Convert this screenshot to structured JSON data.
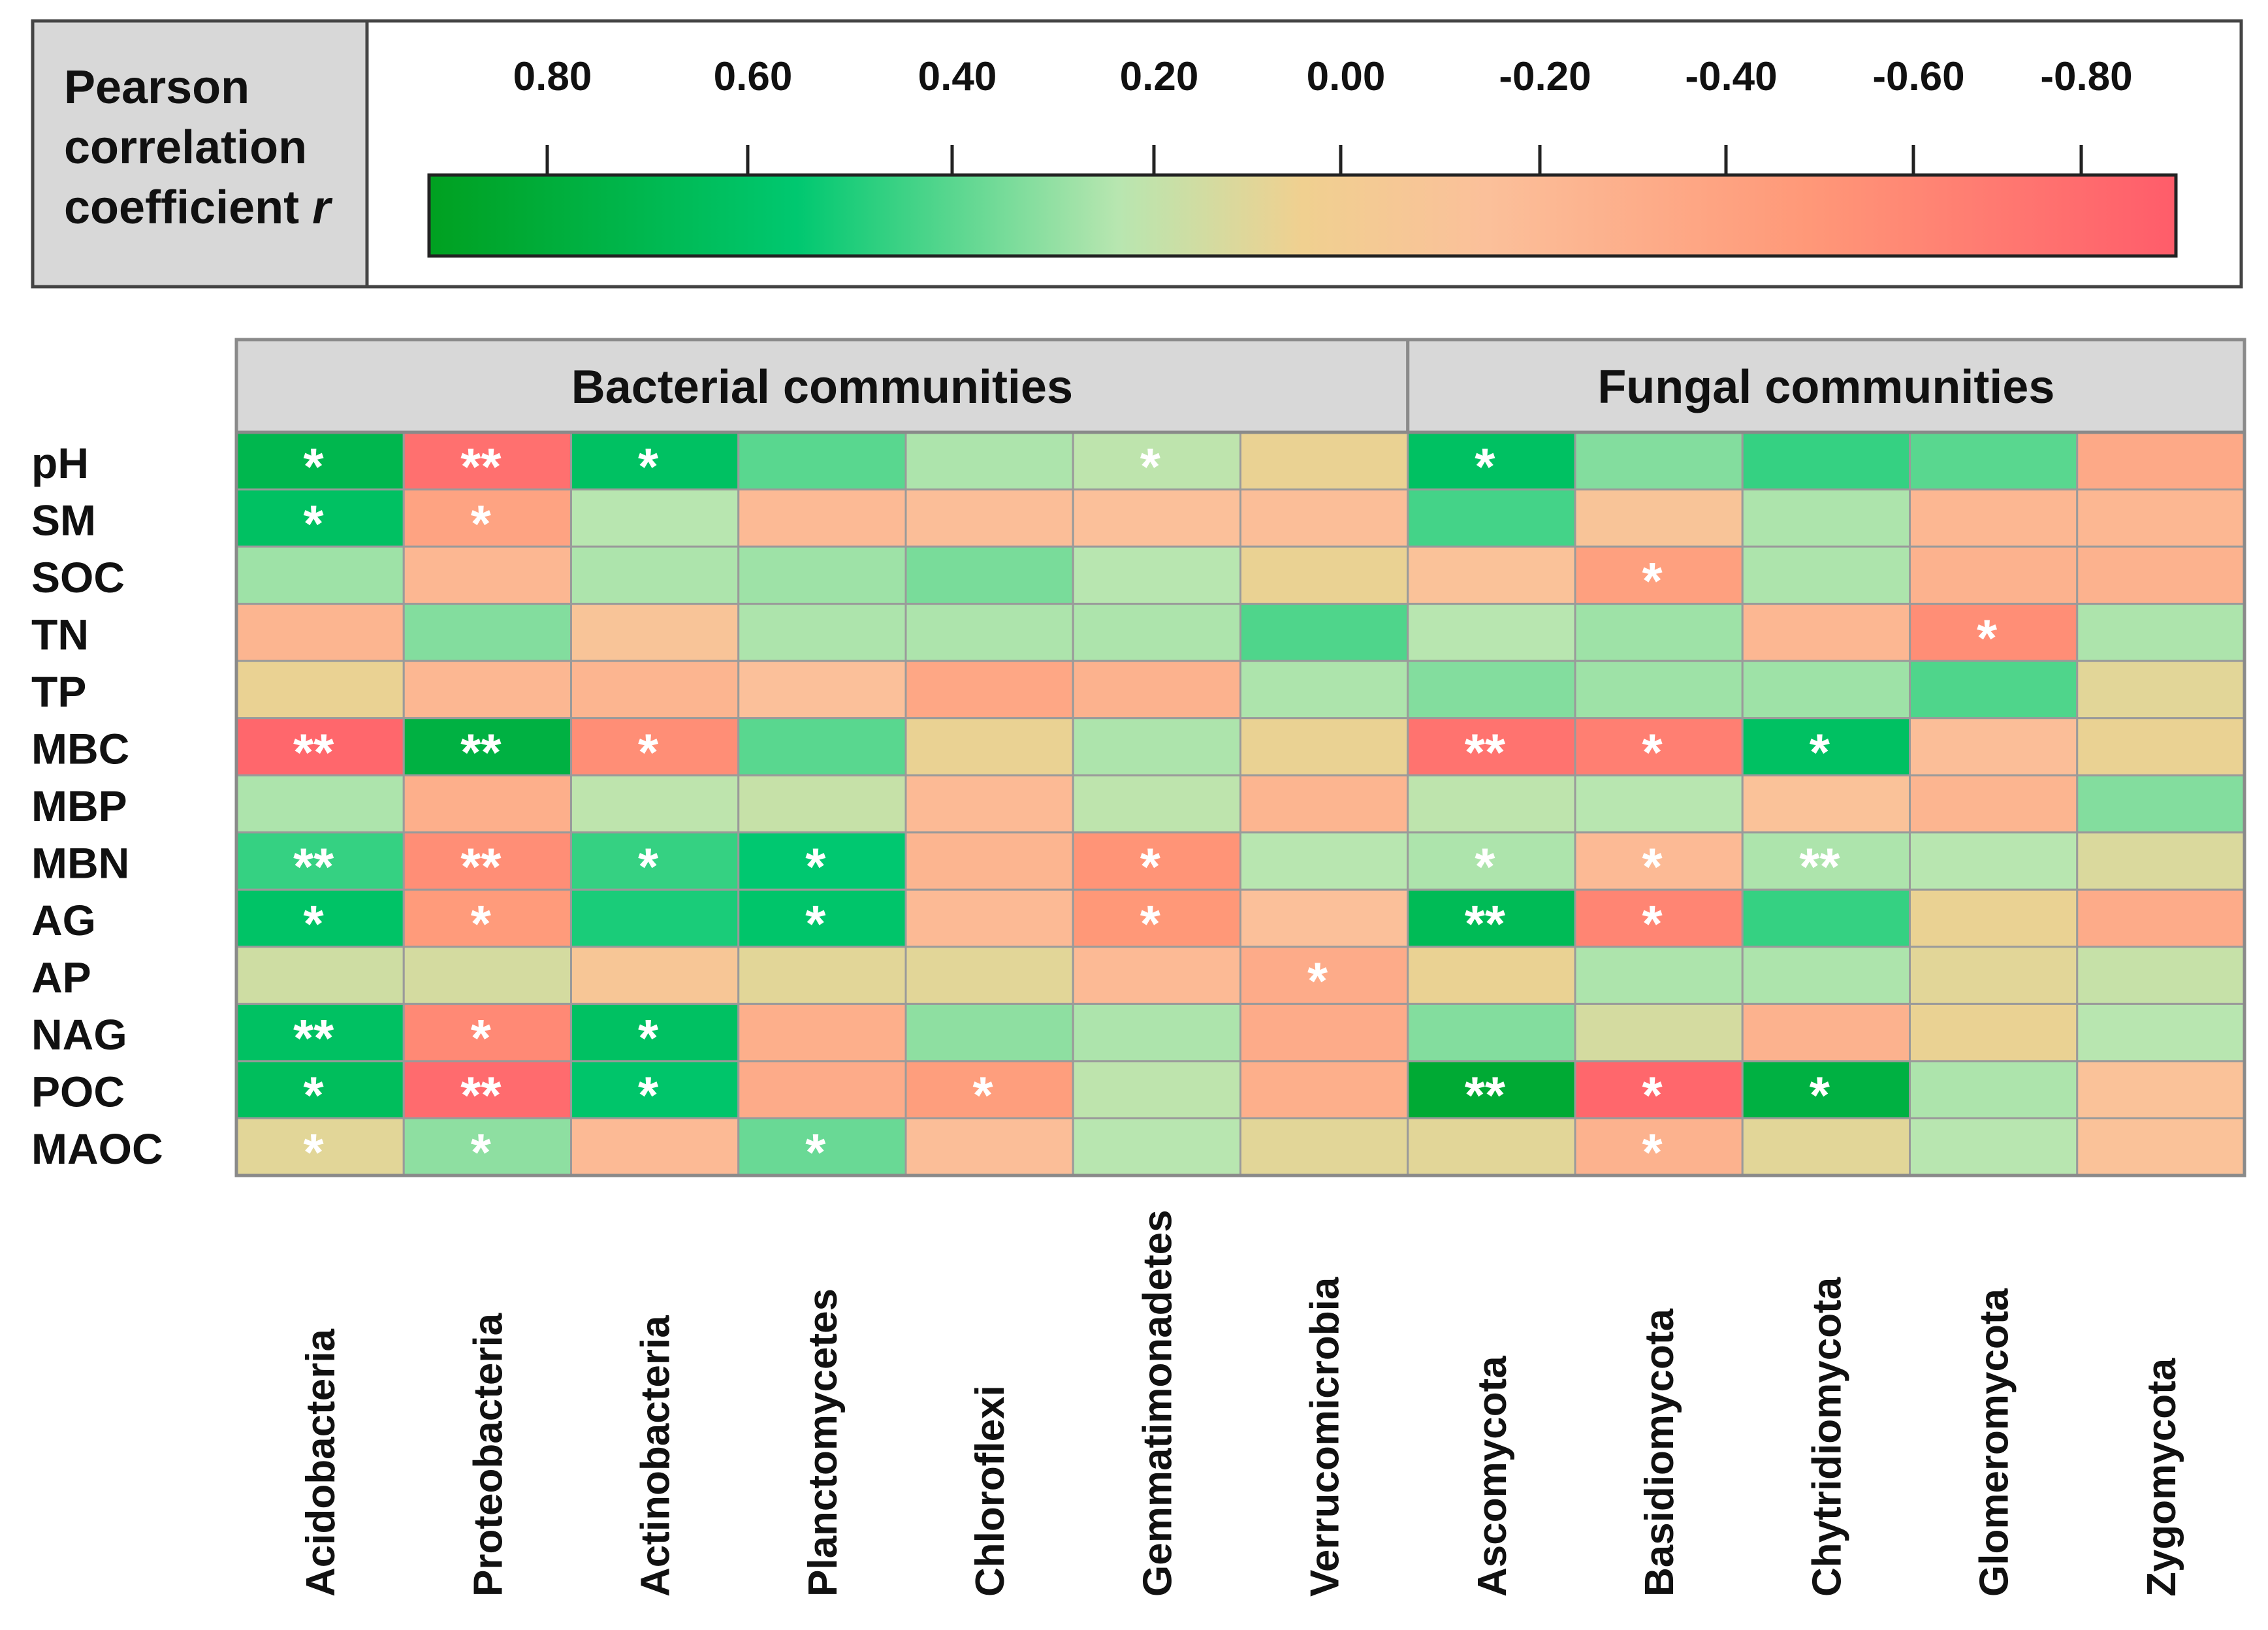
{
  "legend": {
    "title_lines": [
      "Pearson",
      "correlation",
      "coefficient "
    ],
    "title_italic": "r",
    "ticks": [
      0.8,
      0.6,
      0.4,
      0.2,
      0.0,
      -0.2,
      -0.4,
      -0.6,
      -0.8
    ],
    "tick_labels": [
      "0.80",
      "0.60",
      "0.40",
      "0.20",
      "0.00",
      "-0.20",
      "-0.40",
      "-0.60",
      "-0.80"
    ],
    "gradient_stops": [
      {
        "value": 0.95,
        "color": "#00a020"
      },
      {
        "value": 0.55,
        "color": "#00c870"
      },
      {
        "value": 0.2,
        "color": "#b8e6b0"
      },
      {
        "value": 0.0,
        "color": "#f0d090"
      },
      {
        "value": -0.2,
        "color": "#fbc09a"
      },
      {
        "value": -0.55,
        "color": "#ff9878"
      },
      {
        "value": -0.95,
        "color": "#ff5c6a"
      }
    ]
  },
  "chart_data": {
    "type": "heatmap",
    "title": "Pearson correlation coefficient r",
    "groups": [
      {
        "label": "Bacterial communities",
        "columns": 7
      },
      {
        "label": "Fungal communities",
        "columns": 5
      }
    ],
    "columns": [
      "Acidobacteria",
      "Proteobacteria",
      "Actinobacteria",
      "Planctomycetes",
      "Chloroflexi",
      "Gemmatimonadetes",
      "Verrucomicrobia",
      "Ascomycota",
      "Basidiomycota",
      "Chytridiomycota",
      "Glomeromycota",
      "Zygomycota"
    ],
    "rows": [
      "pH",
      "SM",
      "SOC",
      "TN",
      "TP",
      "MBC",
      "MBP",
      "MBN",
      "AG",
      "AP",
      "NAG",
      "POC",
      "MAOC"
    ],
    "values": [
      [
        0.72,
        -0.82,
        0.62,
        0.38,
        0.22,
        0.18,
        0.02,
        0.62,
        0.3,
        0.45,
        0.38,
        -0.4
      ],
      [
        0.62,
        -0.45,
        0.2,
        -0.25,
        -0.22,
        -0.2,
        -0.22,
        0.42,
        -0.15,
        0.22,
        -0.28,
        -0.28
      ],
      [
        0.25,
        -0.28,
        0.22,
        0.25,
        0.32,
        0.2,
        0.02,
        -0.18,
        -0.48,
        0.22,
        -0.32,
        -0.32
      ],
      [
        -0.3,
        0.3,
        -0.15,
        0.22,
        0.22,
        0.22,
        0.4,
        0.2,
        0.25,
        -0.28,
        -0.62,
        0.22
      ],
      [
        0.02,
        -0.28,
        -0.3,
        -0.2,
        -0.42,
        -0.32,
        0.22,
        0.3,
        0.25,
        0.25,
        0.4,
        0.05
      ],
      [
        -0.88,
        0.78,
        -0.62,
        0.38,
        0.02,
        0.22,
        0.02,
        -0.8,
        -0.72,
        0.62,
        -0.22,
        0.02
      ],
      [
        0.22,
        -0.35,
        0.18,
        0.15,
        -0.25,
        0.18,
        -0.3,
        0.18,
        0.2,
        -0.18,
        -0.3,
        0.3
      ],
      [
        0.45,
        -0.62,
        0.45,
        0.55,
        -0.3,
        -0.58,
        0.2,
        0.22,
        -0.25,
        0.22,
        0.2,
        0.08
      ],
      [
        0.6,
        -0.52,
        0.5,
        0.58,
        -0.25,
        -0.55,
        -0.2,
        0.68,
        -0.68,
        0.45,
        0.02,
        -0.38
      ],
      [
        0.12,
        0.1,
        -0.12,
        0.05,
        0.05,
        -0.25,
        -0.38,
        0.02,
        0.22,
        0.22,
        0.05,
        0.15
      ],
      [
        0.62,
        -0.65,
        0.62,
        -0.35,
        0.28,
        0.22,
        -0.38,
        0.3,
        0.1,
        -0.32,
        0.02,
        0.2
      ],
      [
        0.65,
        -0.85,
        0.58,
        -0.38,
        -0.5,
        0.18,
        -0.35,
        0.85,
        -0.88,
        0.78,
        0.22,
        -0.18
      ],
      [
        0.05,
        0.28,
        -0.25,
        0.35,
        -0.22,
        0.2,
        0.05,
        0.05,
        -0.32,
        0.05,
        0.2,
        -0.18
      ]
    ],
    "significance": [
      [
        "*",
        "**",
        "*",
        "",
        "",
        "*",
        "",
        "*",
        "",
        "",
        "",
        ""
      ],
      [
        "*",
        "*",
        "",
        "",
        "",
        "",
        "",
        "",
        "",
        "",
        "",
        ""
      ],
      [
        "",
        "",
        "",
        "",
        "",
        "",
        "",
        "",
        "*",
        "",
        "",
        ""
      ],
      [
        "",
        "",
        "",
        "",
        "",
        "",
        "",
        "",
        "",
        "",
        "*",
        ""
      ],
      [
        "",
        "",
        "",
        "",
        "",
        "",
        "",
        "",
        "",
        "",
        "",
        ""
      ],
      [
        "**",
        "**",
        "*",
        "",
        "",
        "",
        "",
        "**",
        "*",
        "*",
        "",
        ""
      ],
      [
        "",
        "",
        "",
        "",
        "",
        "",
        "",
        "",
        "",
        "",
        "",
        ""
      ],
      [
        "**",
        "**",
        "*",
        "*",
        "",
        "*",
        "",
        "*",
        "*",
        "**",
        "",
        ""
      ],
      [
        "*",
        "*",
        "",
        "*",
        "",
        "*",
        "",
        "**",
        "*",
        "",
        "",
        ""
      ],
      [
        "",
        "",
        "",
        "",
        "",
        "",
        "*",
        "",
        "",
        "",
        "",
        ""
      ],
      [
        "**",
        "*",
        "*",
        "",
        "",
        "",
        "",
        "",
        "",
        "",
        "",
        ""
      ],
      [
        "*",
        "**",
        "*",
        "",
        "*",
        "",
        "",
        "**",
        "*",
        "*",
        "",
        ""
      ],
      [
        "*",
        "*",
        "",
        "*",
        "",
        "",
        "",
        "",
        "*",
        "",
        "",
        ""
      ]
    ],
    "value_range": [
      -0.95,
      0.95
    ]
  }
}
